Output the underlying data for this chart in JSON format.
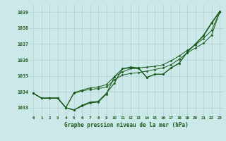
{
  "title": "Graphe pression niveau de la mer (hPa)",
  "background_color": "#cce8e8",
  "grid_color": "#b0d0d0",
  "line_color": "#1a5c1a",
  "marker_color": "#1a5c1a",
  "x_values": [
    0,
    1,
    2,
    3,
    4,
    5,
    6,
    7,
    8,
    9,
    10,
    11,
    12,
    13,
    14,
    15,
    16,
    17,
    18,
    19,
    20,
    21,
    22,
    23
  ],
  "ylim": [
    1032.5,
    1039.5
  ],
  "yticks": [
    1033,
    1034,
    1035,
    1036,
    1037,
    1038,
    1039
  ],
  "series": {
    "line1": [
      1033.9,
      1033.6,
      1033.6,
      1033.6,
      1033.0,
      1032.85,
      1033.15,
      1033.35,
      1033.4,
      1033.9,
      1034.55,
      1035.45,
      1035.5,
      1035.45,
      1034.9,
      1035.1,
      1035.1,
      1035.5,
      1035.8,
      1036.5,
      1037.0,
      1037.5,
      1038.3,
      1039.0
    ],
    "line2": [
      1033.9,
      1033.6,
      1033.6,
      1033.6,
      1033.0,
      1033.9,
      1034.05,
      1034.15,
      1034.2,
      1034.3,
      1034.75,
      1035.05,
      1035.15,
      1035.2,
      1035.3,
      1035.4,
      1035.5,
      1035.7,
      1036.05,
      1036.45,
      1036.75,
      1037.05,
      1037.55,
      1039.0
    ],
    "line3": [
      1033.9,
      1033.6,
      1033.6,
      1033.6,
      1033.0,
      1033.95,
      1034.1,
      1034.25,
      1034.3,
      1034.45,
      1034.95,
      1035.25,
      1035.45,
      1035.5,
      1035.55,
      1035.6,
      1035.7,
      1035.95,
      1036.25,
      1036.6,
      1036.95,
      1037.35,
      1037.85,
      1039.0
    ],
    "line4": [
      1033.9,
      1033.6,
      1033.6,
      1033.6,
      1033.0,
      1032.85,
      1033.1,
      1033.3,
      1033.35,
      1033.85,
      1034.95,
      1035.45,
      1035.55,
      1035.5,
      1034.9,
      1035.1,
      1035.1,
      1035.5,
      1035.8,
      1036.5,
      1037.0,
      1037.55,
      1038.35,
      1039.05
    ]
  }
}
